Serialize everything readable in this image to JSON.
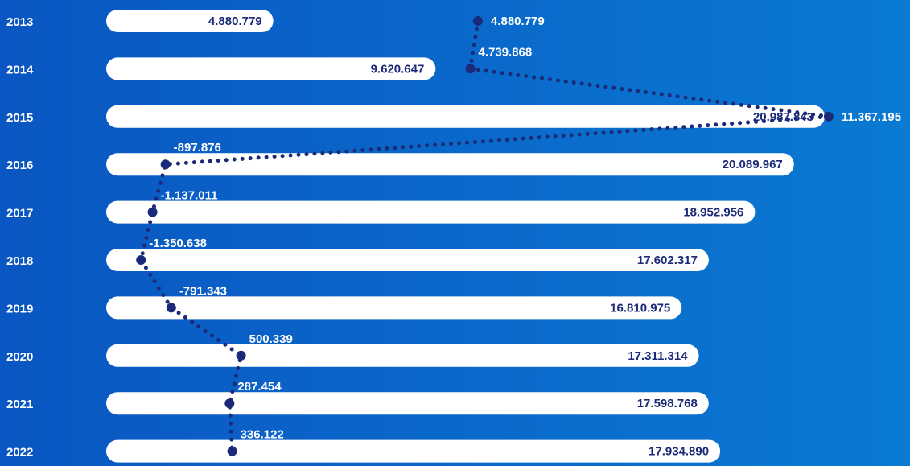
{
  "chart_data": {
    "type": "bar",
    "categories": [
      "2013",
      "2014",
      "2015",
      "2016",
      "2017",
      "2018",
      "2019",
      "2020",
      "2021",
      "2022"
    ],
    "series": [
      {
        "color": "#ffffff",
        "values": [
          4880779,
          9620647,
          20987843,
          20089967,
          18952956,
          17602317,
          16810975,
          17311314,
          17598768,
          17934890
        ],
        "value_labels": [
          "4.880.779",
          "9.620.647",
          "20.987.843",
          "20.089.967",
          "18.952.956",
          "17.602.317",
          "16.810.975",
          "17.311.314",
          "17.598.768",
          "17.934.890"
        ]
      },
      {
        "type": "line",
        "color": "#1b2a78",
        "values": [
          4880779,
          4739868,
          11367195,
          -897876,
          -1137011,
          -1350638,
          -791343,
          500339,
          287454,
          336122
        ],
        "value_labels": [
          "4.880.779",
          "4.739.868",
          "11.367.195",
          "-897.876",
          "-1.137.011",
          "-1.350.638",
          "-791.343",
          "500.339",
          "287.454",
          "336.122"
        ]
      }
    ]
  }
}
